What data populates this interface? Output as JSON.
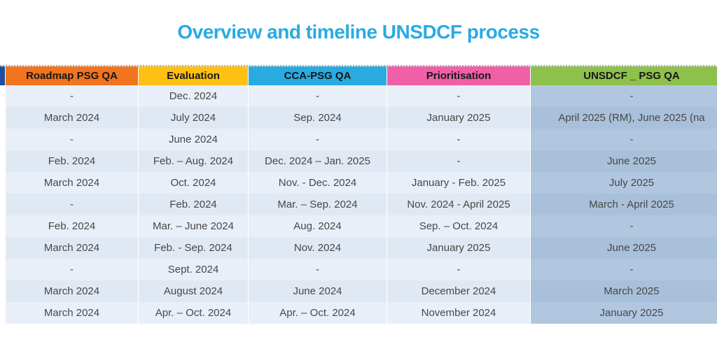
{
  "title": "Overview and timeline UNSDCF process",
  "table": {
    "columns": [
      {
        "label": "Roadmap PSG QA",
        "color": "#F2741E"
      },
      {
        "label": "Evaluation",
        "color": "#FFC013"
      },
      {
        "label": "CCA-PSG QA",
        "color": "#29ABE2"
      },
      {
        "label": "Prioritisation",
        "color": "#F05FA7"
      },
      {
        "label": "UNSDCF _ PSG QA",
        "color": "#8EC04C"
      }
    ],
    "rows": [
      [
        "-",
        "Dec. 2024",
        "-",
        "-",
        "-"
      ],
      [
        "March 2024",
        "July 2024",
        "Sep. 2024",
        "January 2025",
        "April 2025 (RM), June 2025 (na"
      ],
      [
        "-",
        "June 2024",
        "-",
        "-",
        "-"
      ],
      [
        "Feb. 2024",
        "Feb. – Aug. 2024",
        "Dec. 2024 – Jan. 2025",
        "-",
        "June 2025"
      ],
      [
        "March 2024",
        "Oct. 2024",
        "Nov. - Dec. 2024",
        "January - Feb. 2025",
        "July 2025"
      ],
      [
        "-",
        "Feb. 2024",
        "Mar. – Sep. 2024",
        "Nov. 2024 - April 2025",
        "March - April 2025"
      ],
      [
        "Feb. 2024",
        "Mar. – June 2024",
        "Aug. 2024",
        "Sep. – Oct. 2024",
        "-"
      ],
      [
        "March 2024",
        "Feb. - Sep. 2024",
        "Nov. 2024",
        "January 2025",
        "June 2025"
      ],
      [
        "-",
        "Sept. 2024",
        "-",
        "-",
        "-"
      ],
      [
        "March 2024",
        "August 2024",
        "June 2024",
        "December 2024",
        "March 2025"
      ],
      [
        "March 2024",
        "Apr. – Oct. 2024",
        "Apr. – Oct. 2024",
        "November 2024",
        "January 2025"
      ]
    ]
  },
  "colors": {
    "title": "#29ABE2",
    "left_accent": "#1F4E9E",
    "body_row_light": "#E9EFF8",
    "body_row_dark": "#E0E9F3",
    "last_col_light": "#B1C7E0",
    "last_col_dark": "#A9C0DA",
    "header_text": "#171717",
    "body_text": "#474747"
  }
}
